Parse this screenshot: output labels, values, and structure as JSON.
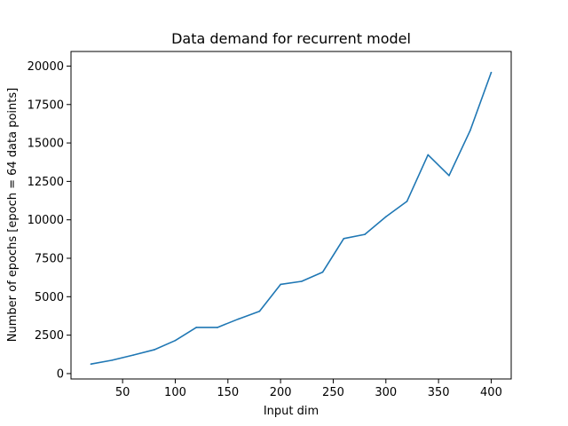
{
  "chart_data": {
    "type": "line",
    "title": "Data demand for recurrent model",
    "xlabel": "Input dim",
    "ylabel": "Number of epochs [epoch = 64 data points]",
    "xlim": [
      1,
      419
    ],
    "ylim": [
      -350,
      20950
    ],
    "xticks": [
      50,
      100,
      150,
      200,
      250,
      300,
      350,
      400
    ],
    "yticks": [
      0,
      2500,
      5000,
      7500,
      10000,
      12500,
      15000,
      17500,
      20000
    ],
    "grid": false,
    "line_color": "#1f77b4",
    "series": [
      {
        "x": [
          20,
          40,
          60,
          80,
          100,
          120,
          140,
          160,
          180,
          200,
          220,
          240,
          260,
          280,
          300,
          320,
          340,
          360,
          380,
          400
        ],
        "values": [
          620,
          870,
          1200,
          1550,
          2150,
          3000,
          3000,
          3550,
          4050,
          5800,
          6000,
          6600,
          8780,
          9050,
          10200,
          11200,
          14230,
          12880,
          15800,
          19580
        ]
      }
    ]
  }
}
